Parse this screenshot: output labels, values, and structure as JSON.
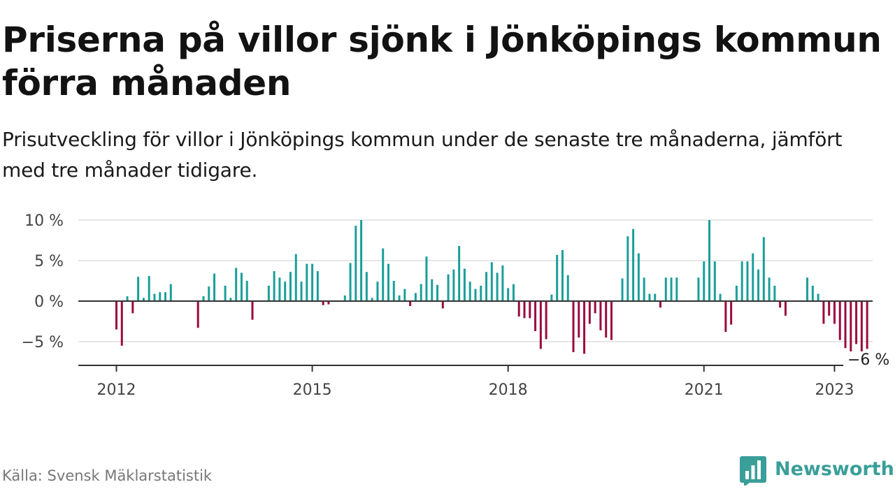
{
  "header": {
    "title": "Priserna på villor sjönk i Jönköpings kommun förra månaden",
    "subtitle": "Prisutveckling för villor i Jönköpings kommun under de senaste tre månaderna, jämfört med tre månader tidigare."
  },
  "footer": {
    "source": "Källa: Svensk Mäklarstatistik",
    "brand": "Newsworthy"
  },
  "icons": {
    "brand_logo": "bar-chart-logo-icon"
  },
  "colors": {
    "positive": "#1a9e9a",
    "negative": "#990a3d",
    "axis": "#333333",
    "grid": "#dddddd",
    "brand": "#3a9e99"
  },
  "chart_data": {
    "type": "bar",
    "title": "",
    "xlabel": "",
    "ylabel": "",
    "ylim": [
      -7.5,
      10
    ],
    "yticks": [
      10,
      5,
      0,
      -5
    ],
    "ytick_labels": [
      "10 %",
      "5 %",
      "0 %",
      "−5 %"
    ],
    "xticks": [
      "2012",
      "2015",
      "2018",
      "2021",
      "2023"
    ],
    "grid": "horizontal",
    "start": "2012-01",
    "frequency": "monthly",
    "end_label": "−6 %",
    "values": [
      -3.5,
      -5.5,
      0.6,
      -1.5,
      3.0,
      0.4,
      3.1,
      0.9,
      1.1,
      1.1,
      2.1,
      null,
      null,
      null,
      null,
      -3.3,
      0.6,
      1.8,
      3.4,
      null,
      1.9,
      0.4,
      4.1,
      3.5,
      2.5,
      -2.3,
      null,
      null,
      1.9,
      3.7,
      2.9,
      2.4,
      3.6,
      5.8,
      2.4,
      4.6,
      4.6,
      3.7,
      -0.5,
      -0.4,
      null,
      null,
      0.7,
      4.7,
      9.3,
      10.0,
      3.6,
      0.4,
      2.4,
      6.5,
      4.6,
      2.5,
      0.7,
      1.5,
      -0.6,
      1.0,
      2.1,
      5.5,
      2.7,
      2.0,
      -0.9,
      3.3,
      3.9,
      6.8,
      4.0,
      2.4,
      1.5,
      1.9,
      3.6,
      4.8,
      3.5,
      4.4,
      1.6,
      2.1,
      -1.9,
      -2.1,
      -2.1,
      -3.7,
      -5.9,
      -4.7,
      0.8,
      5.7,
      6.3,
      3.2,
      -6.3,
      -4.5,
      -6.5,
      -2.8,
      -1.5,
      -3.6,
      -4.5,
      -4.8,
      null,
      2.8,
      8.0,
      8.9,
      5.9,
      2.9,
      0.9,
      0.9,
      -0.8,
      2.9,
      2.9,
      2.9,
      null,
      null,
      null,
      2.9,
      4.9,
      10.0,
      4.9,
      0.9,
      -3.8,
      -2.9,
      1.9,
      4.9,
      4.9,
      5.9,
      3.9,
      7.9,
      2.9,
      1.9,
      -0.8,
      -1.8,
      null,
      null,
      null,
      2.9,
      1.9,
      0.9,
      -2.8,
      -1.8,
      -2.8,
      -4.8,
      -5.8,
      -6.8,
      -5.3,
      -6.5,
      -5.9
    ]
  }
}
